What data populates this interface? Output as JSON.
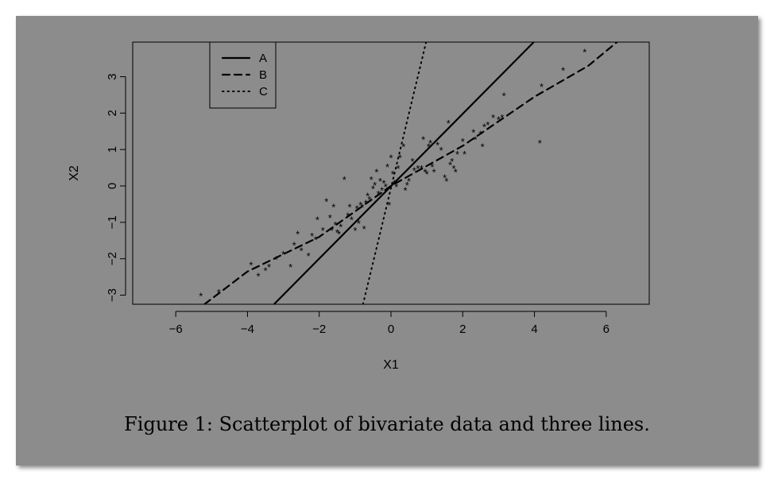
{
  "caption": "Figure 1: Scatterplot of bivariate data and three lines.",
  "chart_data": {
    "type": "scatter",
    "title": "",
    "xlabel": "X1",
    "ylabel": "X2",
    "xlim": [
      -7.2,
      7.2
    ],
    "ylim": [
      -3.25,
      3.95
    ],
    "xticks": [
      -6,
      -4,
      -2,
      0,
      2,
      4,
      6
    ],
    "xtick_labels": [
      "−6",
      "−4",
      "−2",
      "0",
      "2",
      "4",
      "6"
    ],
    "yticks": [
      -3,
      -2,
      -1,
      0,
      1,
      2,
      3
    ],
    "ytick_labels": [
      "−3",
      "−2",
      "−1",
      "0",
      "1",
      "2",
      "3"
    ],
    "grid": false,
    "marker": "*",
    "legend": {
      "position": "top-left",
      "entries": [
        {
          "label": "A",
          "style": "solid"
        },
        {
          "label": "B",
          "style": "dashed"
        },
        {
          "label": "C",
          "style": "dotted"
        }
      ]
    },
    "lines": [
      {
        "name": "A",
        "style": "solid",
        "points": [
          [
            -3.26,
            -3.25
          ],
          [
            3.98,
            3.95
          ]
        ]
      },
      {
        "name": "B",
        "style": "dashed",
        "points": [
          [
            -5.2,
            -3.25
          ],
          [
            -4.0,
            -2.35
          ],
          [
            -2.0,
            -1.4
          ],
          [
            0.0,
            0.0
          ],
          [
            2.0,
            1.1
          ],
          [
            4.0,
            2.45
          ],
          [
            5.5,
            3.3
          ],
          [
            6.3,
            3.95
          ]
        ]
      },
      {
        "name": "C",
        "style": "dotted",
        "points": [
          [
            -0.78,
            -3.25
          ],
          [
            0.98,
            3.95
          ]
        ]
      }
    ],
    "points": [
      [
        -5.3,
        -3.0
      ],
      [
        -4.8,
        -2.9
      ],
      [
        -3.9,
        -2.15
      ],
      [
        -3.7,
        -2.45
      ],
      [
        -3.5,
        -2.3
      ],
      [
        -3.4,
        -2.2
      ],
      [
        -3.2,
        -2.0
      ],
      [
        -3.0,
        -1.85
      ],
      [
        -2.8,
        -2.2
      ],
      [
        -2.7,
        -1.6
      ],
      [
        -2.6,
        -1.3
      ],
      [
        -2.5,
        -1.75
      ],
      [
        -2.3,
        -1.9
      ],
      [
        -2.2,
        -1.35
      ],
      [
        -2.1,
        -1.45
      ],
      [
        -2.05,
        -0.9
      ],
      [
        -1.9,
        -1.2
      ],
      [
        -1.8,
        -0.4
      ],
      [
        -1.7,
        -0.85
      ],
      [
        -1.65,
        -1.2
      ],
      [
        -1.6,
        -0.55
      ],
      [
        -1.55,
        -1.05
      ],
      [
        -1.5,
        -1.25
      ],
      [
        -1.45,
        -1.3
      ],
      [
        -1.4,
        -1.1
      ],
      [
        -1.3,
        0.2
      ],
      [
        -1.2,
        -0.8
      ],
      [
        -1.15,
        -0.55
      ],
      [
        -1.1,
        -0.9
      ],
      [
        -1.0,
        -1.2
      ],
      [
        -0.95,
        -0.6
      ],
      [
        -0.9,
        -1.0
      ],
      [
        -0.85,
        -0.5
      ],
      [
        -0.8,
        -0.55
      ],
      [
        -0.75,
        -1.15
      ],
      [
        -0.7,
        -0.45
      ],
      [
        -0.65,
        -0.25
      ],
      [
        -0.6,
        -0.35
      ],
      [
        -0.55,
        0.2
      ],
      [
        -0.5,
        -0.05
      ],
      [
        -0.45,
        0.05
      ],
      [
        -0.4,
        0.4
      ],
      [
        -0.35,
        -0.2
      ],
      [
        -0.3,
        0.15
      ],
      [
        -0.25,
        -0.1
      ],
      [
        -0.2,
        0.1
      ],
      [
        -0.15,
        0.0
      ],
      [
        -0.1,
        0.55
      ],
      [
        -0.05,
        -0.5
      ],
      [
        0.0,
        0.8
      ],
      [
        0.05,
        0.35
      ],
      [
        0.1,
        0.1
      ],
      [
        0.15,
        0.0
      ],
      [
        0.2,
        0.5
      ],
      [
        0.25,
        0.8
      ],
      [
        0.35,
        1.1
      ],
      [
        0.4,
        -0.1
      ],
      [
        0.45,
        0.05
      ],
      [
        0.5,
        0.15
      ],
      [
        0.6,
        0.7
      ],
      [
        0.65,
        0.45
      ],
      [
        0.75,
        0.5
      ],
      [
        0.85,
        0.5
      ],
      [
        0.9,
        1.3
      ],
      [
        0.95,
        0.4
      ],
      [
        1.0,
        0.35
      ],
      [
        1.05,
        1.1
      ],
      [
        1.1,
        1.2
      ],
      [
        1.15,
        0.55
      ],
      [
        1.2,
        0.4
      ],
      [
        1.3,
        1.15
      ],
      [
        1.4,
        1.0
      ],
      [
        1.5,
        0.25
      ],
      [
        1.55,
        0.15
      ],
      [
        1.6,
        1.75
      ],
      [
        1.65,
        0.6
      ],
      [
        1.7,
        0.7
      ],
      [
        1.75,
        0.5
      ],
      [
        1.8,
        0.4
      ],
      [
        1.85,
        0.9
      ],
      [
        2.0,
        1.25
      ],
      [
        2.05,
        0.9
      ],
      [
        2.3,
        1.5
      ],
      [
        2.35,
        1.3
      ],
      [
        2.5,
        1.45
      ],
      [
        2.55,
        1.1
      ],
      [
        2.6,
        1.65
      ],
      [
        2.7,
        1.7
      ],
      [
        2.85,
        1.9
      ],
      [
        3.0,
        1.85
      ],
      [
        3.1,
        1.9
      ],
      [
        3.15,
        2.5
      ],
      [
        4.15,
        1.2
      ],
      [
        4.2,
        2.75
      ],
      [
        4.8,
        3.2
      ],
      [
        5.4,
        3.7
      ]
    ]
  }
}
